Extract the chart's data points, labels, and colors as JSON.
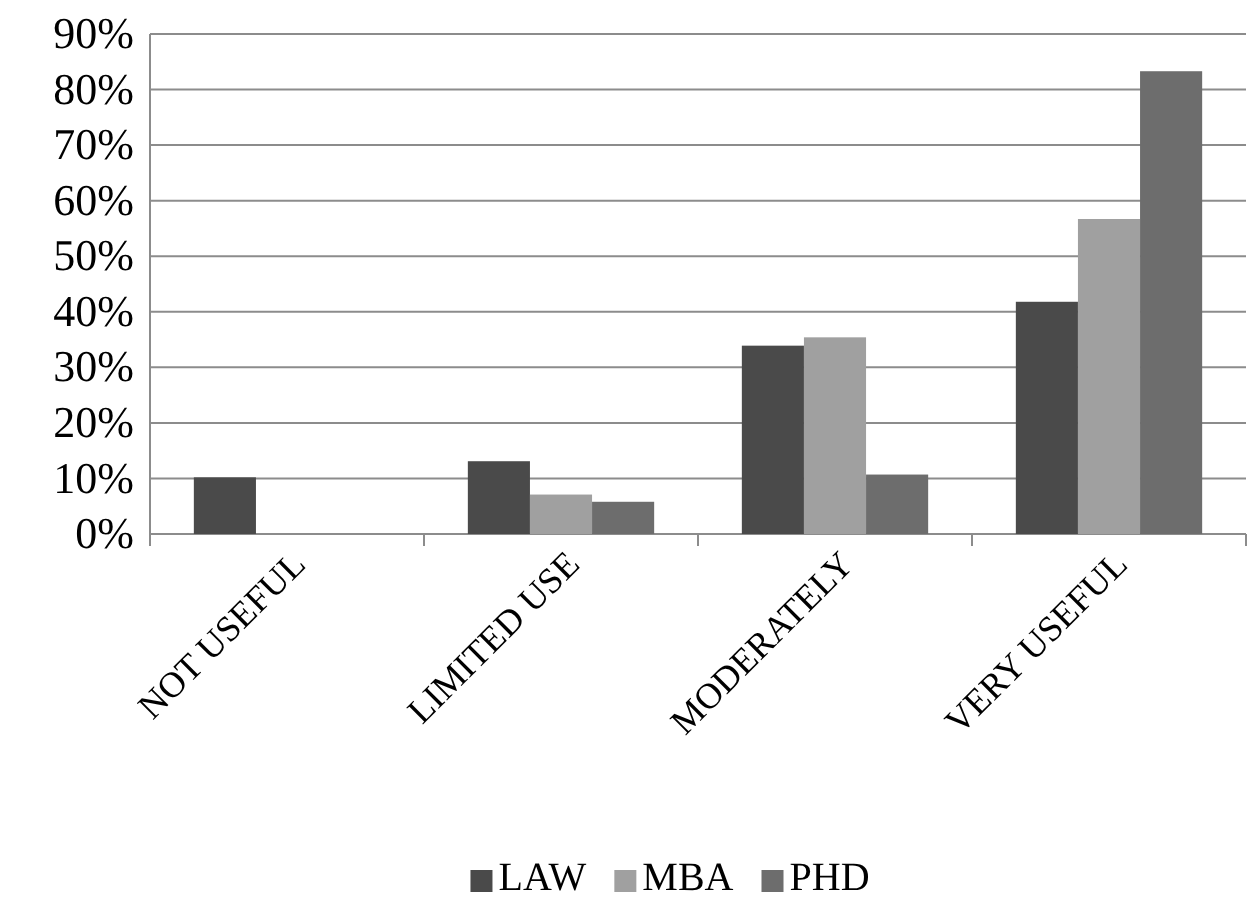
{
  "chart_data": {
    "type": "bar",
    "categories": [
      "NOT USEFUL",
      "LIMITED USE",
      "MODERATELY",
      "VERY USEFUL"
    ],
    "series": [
      {
        "name": "LAW",
        "color": "#4a4a4a",
        "values": [
          10.2,
          13.1,
          33.9,
          41.8
        ]
      },
      {
        "name": "MBA",
        "color": "#a0a0a0",
        "values": [
          0,
          7.1,
          35.4,
          56.7
        ]
      },
      {
        "name": "PHD",
        "color": "#6d6d6d",
        "values": [
          0,
          5.8,
          10.7,
          83.3
        ]
      }
    ],
    "ylim": [
      0,
      90
    ],
    "yticks": [
      {
        "value": 0,
        "label": "0%"
      },
      {
        "value": 10,
        "label": "10%"
      },
      {
        "value": 20,
        "label": "20%"
      },
      {
        "value": 30,
        "label": "30%"
      },
      {
        "value": 40,
        "label": "40%"
      },
      {
        "value": 50,
        "label": "50%"
      },
      {
        "value": 60,
        "label": "60%"
      },
      {
        "value": 70,
        "label": "70%"
      },
      {
        "value": 80,
        "label": "80%"
      },
      {
        "value": 90,
        "label": "90%"
      }
    ],
    "grid": "y",
    "legend": "bottom"
  }
}
